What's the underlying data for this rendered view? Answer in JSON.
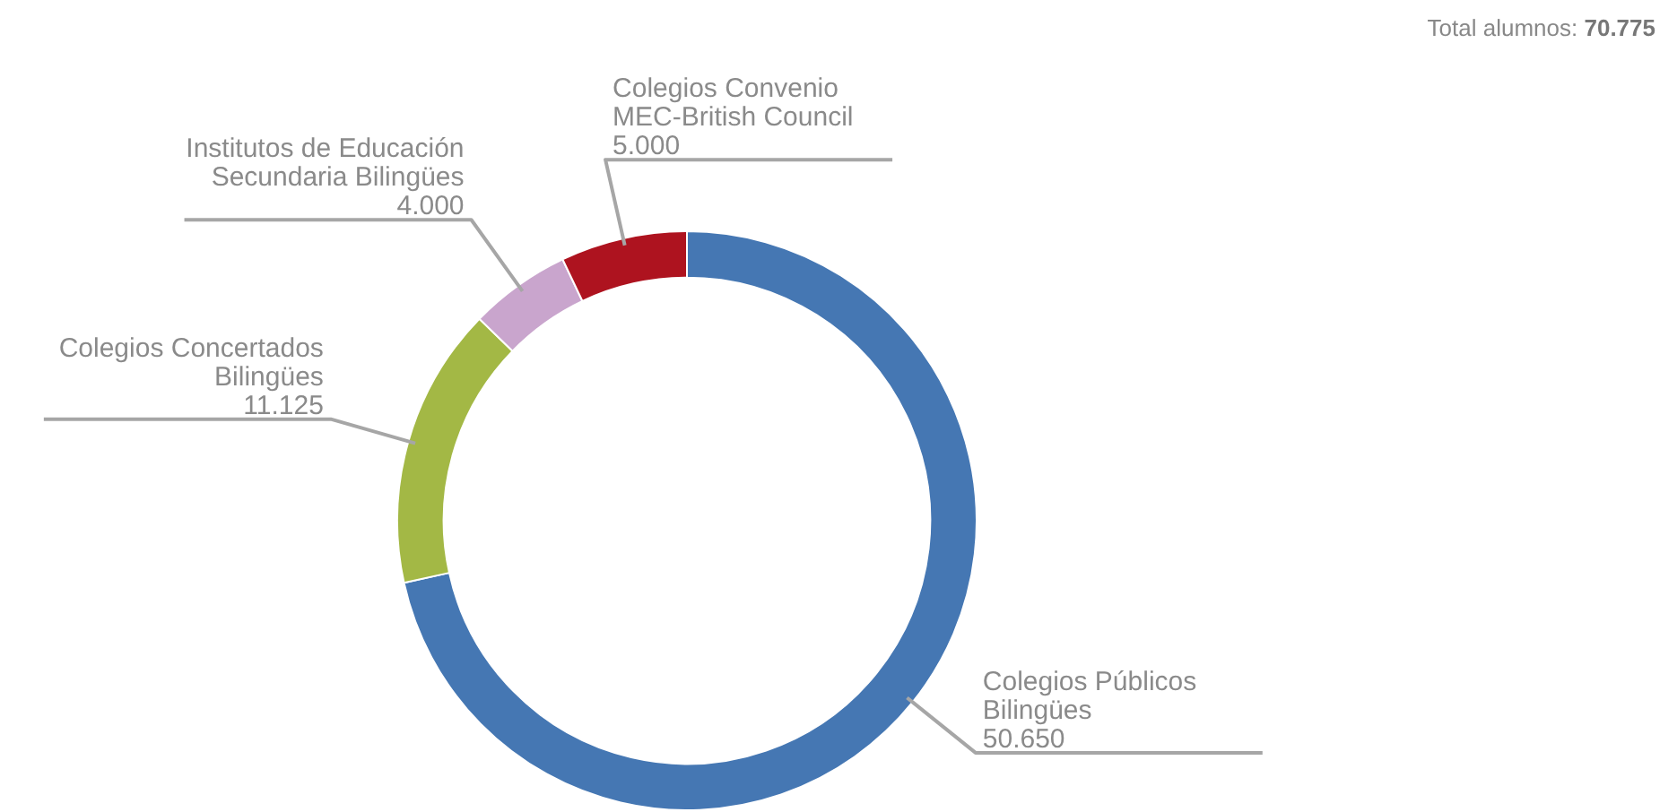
{
  "chart_data": {
    "type": "donut",
    "categories": [
      "Colegios Públicos Bilingües",
      "Colegios Concertados Bilingües",
      "Institutos de Educación Secundaria Bilingües",
      "Colegios Convenio MEC-British Council"
    ],
    "values": [
      50650,
      11125,
      4000,
      5000
    ],
    "value_labels": [
      "50.650",
      "11.125",
      "4.000",
      "5.000"
    ],
    "colors": [
      "#4577b3",
      "#a3b845",
      "#c9a5cd",
      "#ae131f"
    ],
    "annotations": [
      "Total alumnos: 70.775"
    ],
    "legend": false
  }
}
